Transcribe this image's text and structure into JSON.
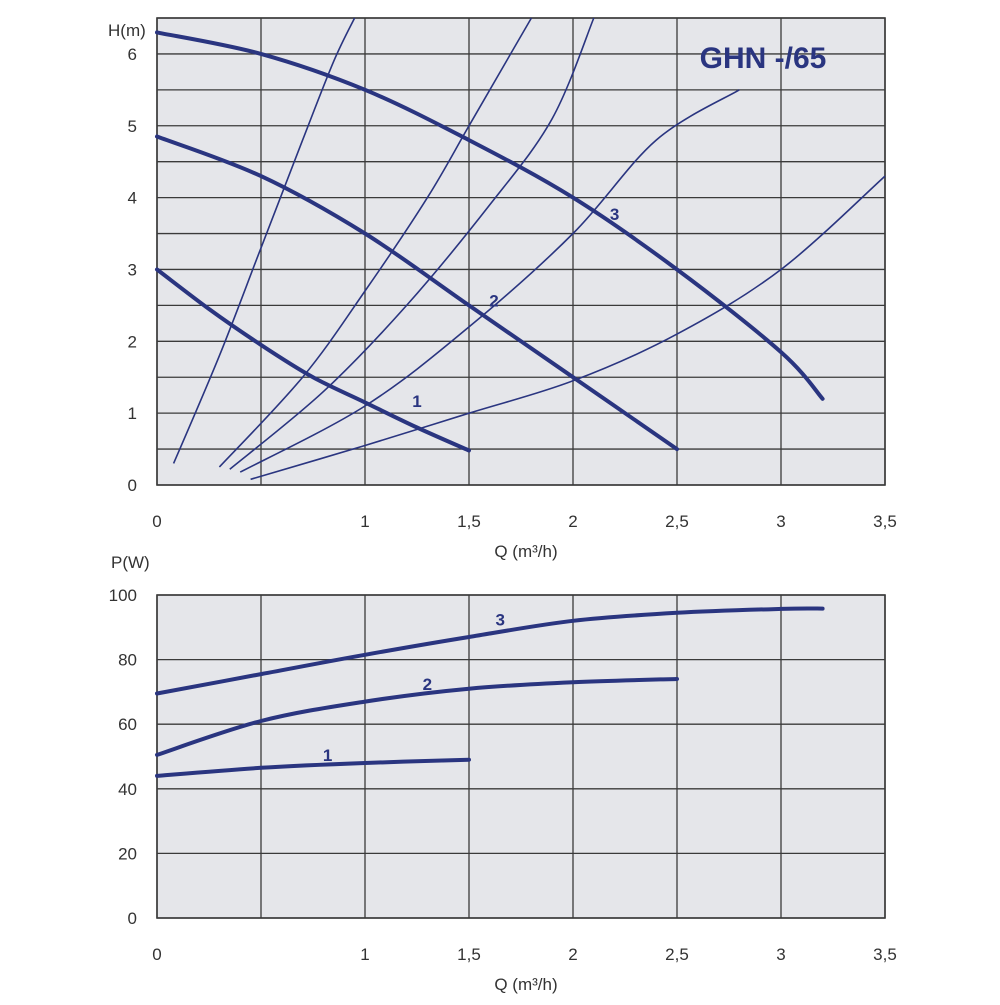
{
  "colors": {
    "background": "#e5e6ea",
    "grid": "#3a3a3a",
    "curve": "#2a3580",
    "title": "#2a3580"
  },
  "chart_data": [
    {
      "type": "line",
      "title": "GHN -/65",
      "xlabel": "Q (m³/h)",
      "ylabel": "H(m)",
      "xlim": [
        0,
        3.5
      ],
      "ylim": [
        0,
        6.5
      ],
      "x_ticks": [
        "0",
        "1",
        "1,5",
        "2",
        "2,5",
        "3",
        "3,5"
      ],
      "x_tick_values": [
        0,
        1,
        1.5,
        2,
        2.5,
        3,
        3.5
      ],
      "y_ticks": [
        "0",
        "1",
        "2",
        "3",
        "4",
        "5",
        "6"
      ],
      "y_tick_values": [
        0,
        1,
        2,
        3,
        4,
        5,
        6
      ],
      "grid": true,
      "series": [
        {
          "name": "1",
          "x": [
            0,
            0.25,
            0.5,
            0.75,
            1.0,
            1.25,
            1.5
          ],
          "y": [
            3.0,
            2.45,
            1.95,
            1.5,
            1.15,
            0.8,
            0.48
          ]
        },
        {
          "name": "2",
          "x": [
            0,
            0.5,
            1.0,
            1.5,
            2.0,
            2.5
          ],
          "y": [
            4.85,
            4.3,
            3.5,
            2.5,
            1.5,
            0.5
          ]
        },
        {
          "name": "3",
          "x": [
            0,
            0.5,
            1.0,
            1.5,
            2.0,
            2.5,
            3.0,
            3.2
          ],
          "y": [
            6.3,
            6.0,
            5.5,
            4.8,
            4.0,
            3.0,
            1.85,
            1.2
          ]
        }
      ],
      "system_curves": [
        {
          "x": [
            0.08,
            0.3,
            0.5,
            0.7,
            0.85,
            0.95
          ],
          "y": [
            0.3,
            1.8,
            3.3,
            4.8,
            5.9,
            6.5
          ]
        },
        {
          "x": [
            0.3,
            0.7,
            1.0,
            1.3,
            1.5,
            1.7,
            1.8
          ],
          "y": [
            0.25,
            1.5,
            2.7,
            4.0,
            5.0,
            6.0,
            6.5
          ]
        },
        {
          "x": [
            0.35,
            0.8,
            1.2,
            1.6,
            1.9,
            2.1
          ],
          "y": [
            0.22,
            1.3,
            2.5,
            3.9,
            5.1,
            6.5
          ]
        },
        {
          "x": [
            0.4,
            1.0,
            1.5,
            2.0,
            2.4,
            2.8
          ],
          "y": [
            0.18,
            1.1,
            2.2,
            3.5,
            4.8,
            5.5
          ]
        },
        {
          "x": [
            0.45,
            1.0,
            1.5,
            2.0,
            2.5,
            3.0,
            3.5
          ],
          "y": [
            0.08,
            0.55,
            1.0,
            1.45,
            2.1,
            3.0,
            4.3
          ]
        }
      ],
      "curve_labels": [
        {
          "text": "1",
          "x": 1.25,
          "y": 1.15
        },
        {
          "text": "2",
          "x": 1.62,
          "y": 2.55
        },
        {
          "text": "3",
          "x": 2.2,
          "y": 3.75
        }
      ]
    },
    {
      "type": "line",
      "title": "",
      "xlabel": "Q (m³/h)",
      "ylabel": "P(W)",
      "xlim": [
        0,
        3.5
      ],
      "ylim": [
        0,
        100
      ],
      "x_ticks": [
        "0",
        "1",
        "1,5",
        "2",
        "2,5",
        "3",
        "3,5"
      ],
      "x_tick_values": [
        0,
        1,
        1.5,
        2,
        2.5,
        3,
        3.5
      ],
      "y_ticks": [
        "0",
        "20",
        "40",
        "60",
        "80",
        "100"
      ],
      "y_tick_values": [
        0,
        20,
        40,
        60,
        80,
        100
      ],
      "grid": true,
      "series": [
        {
          "name": "1",
          "x": [
            0,
            0.5,
            1.0,
            1.5
          ],
          "y": [
            44,
            46.5,
            48,
            49
          ]
        },
        {
          "name": "2",
          "x": [
            0,
            0.5,
            1.0,
            1.5,
            2.0,
            2.5
          ],
          "y": [
            50.5,
            61,
            67,
            71,
            73,
            74
          ]
        },
        {
          "name": "3",
          "x": [
            0,
            0.5,
            1.0,
            1.5,
            2.0,
            2.5,
            3.0,
            3.2
          ],
          "y": [
            69.5,
            75.5,
            81.5,
            87,
            92,
            94.5,
            95.7,
            95.8
          ]
        }
      ],
      "curve_labels": [
        {
          "text": "1",
          "x": 0.82,
          "y": 50
        },
        {
          "text": "2",
          "x": 1.3,
          "y": 72
        },
        {
          "text": "3",
          "x": 1.65,
          "y": 92
        }
      ]
    }
  ]
}
